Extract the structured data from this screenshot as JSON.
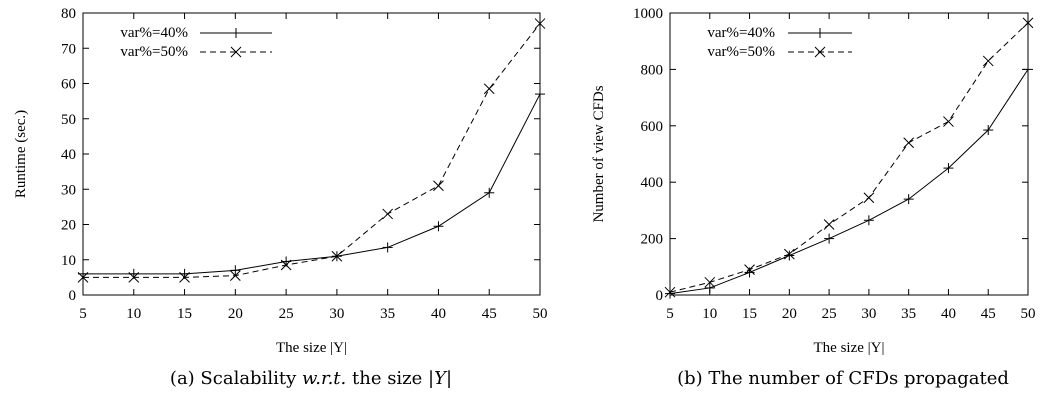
{
  "chart_data": [
    {
      "type": "line",
      "title": "",
      "xlabel": "The size |Y|",
      "ylabel": "Runtime (sec.)",
      "x": [
        5,
        10,
        15,
        20,
        25,
        30,
        35,
        40,
        45,
        50
      ],
      "xlim": [
        5,
        50
      ],
      "ylim": [
        0,
        80
      ],
      "xticks": [
        5,
        10,
        15,
        20,
        25,
        30,
        35,
        40,
        45,
        50
      ],
      "yticks": [
        0,
        10,
        20,
        30,
        40,
        50,
        60,
        70,
        80
      ],
      "legend_position": "top-left",
      "grid": false,
      "series": [
        {
          "name": "var%=40%",
          "marker": "plus",
          "dash": "solid",
          "values": [
            6,
            6,
            6,
            7,
            9.5,
            11,
            13.5,
            19.5,
            29,
            57
          ]
        },
        {
          "name": "var%=50%",
          "marker": "cross",
          "dash": "dashed",
          "values": [
            5,
            5,
            5,
            5.5,
            8.5,
            11,
            23,
            31,
            58.5,
            77
          ]
        }
      ],
      "caption": {
        "prefix": "(a) Scalability ",
        "italic": "w.r.t.",
        "mid": " the size ",
        "math": "|Y|"
      }
    },
    {
      "type": "line",
      "title": "",
      "xlabel": "The size |Y|",
      "ylabel": "Number of view CFDs",
      "x": [
        5,
        10,
        15,
        20,
        25,
        30,
        35,
        40,
        45,
        50
      ],
      "xlim": [
        5,
        50
      ],
      "ylim": [
        0,
        1000
      ],
      "xticks": [
        5,
        10,
        15,
        20,
        25,
        30,
        35,
        40,
        45,
        50
      ],
      "yticks": [
        0,
        200,
        400,
        600,
        800,
        1000
      ],
      "legend_position": "top-left",
      "grid": false,
      "series": [
        {
          "name": "var%=40%",
          "marker": "plus",
          "dash": "solid",
          "values": [
            5,
            25,
            80,
            140,
            200,
            265,
            340,
            450,
            585,
            800
          ]
        },
        {
          "name": "var%=50%",
          "marker": "cross",
          "dash": "dashed",
          "values": [
            10,
            45,
            90,
            145,
            250,
            345,
            540,
            615,
            830,
            965
          ]
        }
      ],
      "caption": {
        "text": "(b) The number of CFDs propagated"
      }
    }
  ]
}
